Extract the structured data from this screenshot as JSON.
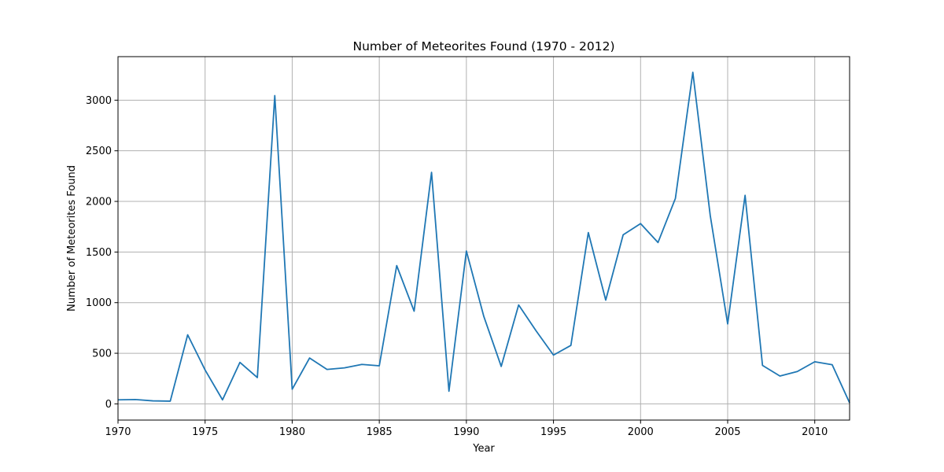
{
  "chart_data": {
    "type": "line",
    "title": "Number of Meteorites Found (1970 - 2012)",
    "xlabel": "Year",
    "ylabel": "Number of Meteorites Found",
    "xlim": [
      1970,
      2012
    ],
    "ylim": [
      -160,
      3430
    ],
    "xticks": [
      1970,
      1975,
      1980,
      1985,
      1990,
      1995,
      2000,
      2005,
      2010
    ],
    "yticks": [
      0,
      500,
      1000,
      1500,
      2000,
      2500,
      3000
    ],
    "grid": true,
    "legend": "none",
    "series": [
      {
        "color": "#1f77b4",
        "x": [
          1970,
          1971,
          1972,
          1973,
          1974,
          1975,
          1976,
          1977,
          1978,
          1979,
          1980,
          1981,
          1982,
          1983,
          1984,
          1985,
          1986,
          1987,
          1988,
          1989,
          1990,
          1991,
          1992,
          1993,
          1994,
          1995,
          1996,
          1997,
          1998,
          1999,
          2000,
          2001,
          2002,
          2003,
          2004,
          2005,
          2006,
          2007,
          2008,
          2009,
          2010,
          2011,
          2012
        ],
        "y": [
          40,
          43,
          30,
          27,
          682,
          335,
          40,
          410,
          260,
          3045,
          145,
          453,
          340,
          356,
          390,
          376,
          1366,
          916,
          2287,
          125,
          1510,
          864,
          370,
          977,
          722,
          482,
          578,
          1692,
          1025,
          1670,
          1781,
          1594,
          2030,
          3275,
          1860,
          790,
          2060,
          380,
          275,
          320,
          416,
          387,
          10
        ]
      }
    ]
  }
}
